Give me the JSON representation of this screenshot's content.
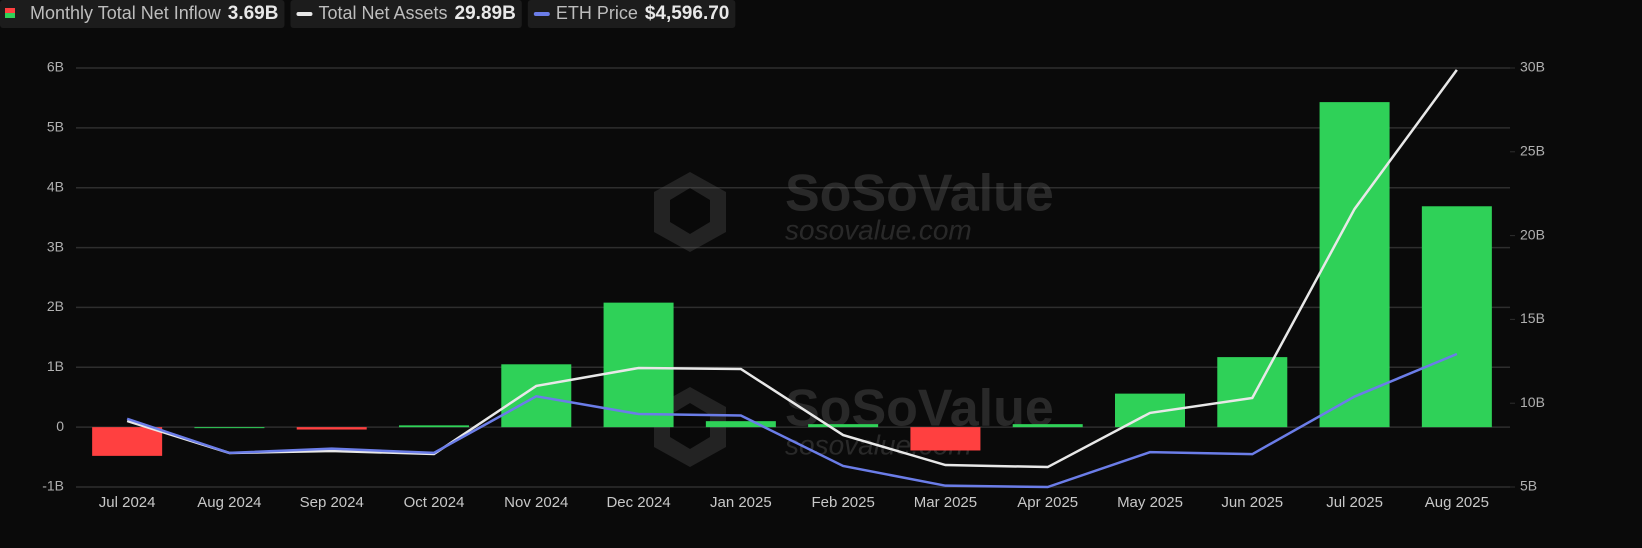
{
  "chart_data": {
    "type": "bar-line",
    "categories": [
      "Jul 2024",
      "Aug 2024",
      "Sep 2024",
      "Oct 2024",
      "Nov 2024",
      "Dec 2024",
      "Jan 2025",
      "Feb 2025",
      "Mar 2025",
      "Apr 2025",
      "May 2025",
      "Jun 2025",
      "Jul 2025",
      "Aug 2025"
    ],
    "series": [
      {
        "name": "Monthly Total Net Inflow",
        "legend_value": "3.69B",
        "type": "bar",
        "axis": "y",
        "color": "#2fd158",
        "negative_color": "#ff4040",
        "values": [
          -0.48,
          0.0,
          -0.04,
          0.03,
          1.05,
          2.08,
          0.1,
          0.05,
          -0.39,
          0.05,
          0.56,
          1.17,
          5.43,
          3.69
        ]
      },
      {
        "name": "Total Net Assets",
        "legend_value": "29.89B",
        "type": "line",
        "axis": "y2",
        "color": "#e8e8e8",
        "values": [
          8.94,
          7.03,
          7.15,
          6.97,
          11.03,
          12.1,
          12.04,
          8.1,
          6.31,
          6.19,
          9.42,
          10.31,
          21.59,
          29.89
        ]
      },
      {
        "name": "ETH Price",
        "legend_value": "$4,596.70",
        "type": "line",
        "axis": "none",
        "color": "#6b7de8",
        "values": [
          3232,
          2513,
          2602,
          2513,
          3705,
          3332,
          3300,
          2237,
          1822,
          1794,
          2528,
          2486,
          3700,
          4596.7
        ]
      }
    ],
    "ylim": [
      -1,
      6
    ],
    "yticks": [
      {
        "value": -1,
        "label": "-1B"
      },
      0,
      {
        "value": 1,
        "label": "1B"
      },
      {
        "value": 2,
        "label": "2B"
      },
      {
        "value": 3,
        "label": "3B"
      },
      {
        "value": 4,
        "label": "4B"
      },
      {
        "value": 5,
        "label": "5B"
      },
      {
        "value": 6,
        "label": "6B"
      }
    ],
    "y2lim": [
      5,
      30
    ],
    "y2ticks": [
      {
        "value": 5,
        "label": "5B"
      },
      {
        "value": 10,
        "label": "10B"
      },
      {
        "value": 15,
        "label": "15B"
      },
      {
        "value": 20,
        "label": "20B"
      },
      {
        "value": 25,
        "label": "25B"
      },
      {
        "value": 30,
        "label": "30B"
      }
    ],
    "grid": true,
    "watermark": {
      "title": "SoSoValue",
      "url": "sosovalue.com"
    }
  }
}
